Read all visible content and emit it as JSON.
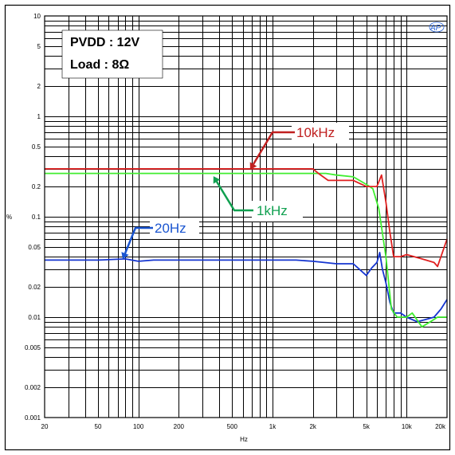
{
  "chart_data": {
    "type": "line",
    "xscale": "log",
    "yscale": "log",
    "xlim": [
      20,
      20000
    ],
    "ylim": [
      0.001,
      10
    ],
    "xlabel": "Hz",
    "ylabel": "%",
    "grid": true,
    "x_ticks": [
      {
        "value": 20,
        "label": "20"
      },
      {
        "value": 50,
        "label": "50"
      },
      {
        "value": 100,
        "label": "100"
      },
      {
        "value": 200,
        "label": "200"
      },
      {
        "value": 500,
        "label": "500"
      },
      {
        "value": 1000,
        "label": "1k"
      },
      {
        "value": 2000,
        "label": "2k"
      },
      {
        "value": 5000,
        "label": "5k"
      },
      {
        "value": 10000,
        "label": "10k"
      },
      {
        "value": 20000,
        "label": "20k"
      }
    ],
    "y_ticks": [
      {
        "value": 10,
        "label": "10"
      },
      {
        "value": 5,
        "label": "5"
      },
      {
        "value": 2,
        "label": "2"
      },
      {
        "value": 1,
        "label": "1"
      },
      {
        "value": 0.5,
        "label": "0.5"
      },
      {
        "value": 0.2,
        "label": "0.2"
      },
      {
        "value": 0.1,
        "label": "0.1"
      },
      {
        "value": 0.05,
        "label": "0.05"
      },
      {
        "value": 0.02,
        "label": "0.02"
      },
      {
        "value": 0.01,
        "label": "0.01"
      },
      {
        "value": 0.005,
        "label": "0.005"
      },
      {
        "value": 0.002,
        "label": "0.002"
      },
      {
        "value": 0.001,
        "label": "0.001"
      }
    ],
    "info_box": {
      "line1": "PVDD : 12V",
      "line2": "Load : 8Ω"
    },
    "logo_text": "AP",
    "series": [
      {
        "name": "10kHz",
        "color": "#e02020",
        "points": [
          [
            20,
            0.3
          ],
          [
            100,
            0.3
          ],
          [
            300,
            0.3
          ],
          [
            700,
            0.3
          ],
          [
            1500,
            0.3
          ],
          [
            2000,
            0.3
          ],
          [
            2200,
            0.27
          ],
          [
            2600,
            0.23
          ],
          [
            3500,
            0.23
          ],
          [
            4000,
            0.23
          ],
          [
            5000,
            0.2
          ],
          [
            5500,
            0.2
          ],
          [
            6000,
            0.2
          ],
          [
            6500,
            0.26
          ],
          [
            7000,
            0.14
          ],
          [
            7500,
            0.07
          ],
          [
            8000,
            0.04
          ],
          [
            9000,
            0.04
          ],
          [
            10000,
            0.042
          ],
          [
            13000,
            0.038
          ],
          [
            16000,
            0.035
          ],
          [
            17000,
            0.032
          ],
          [
            20000,
            0.06
          ]
        ]
      },
      {
        "name": "1kHz",
        "color": "#40ee30",
        "points": [
          [
            20,
            0.27
          ],
          [
            100,
            0.27
          ],
          [
            300,
            0.27
          ],
          [
            700,
            0.27
          ],
          [
            1500,
            0.27
          ],
          [
            2000,
            0.27
          ],
          [
            2500,
            0.27
          ],
          [
            3000,
            0.26
          ],
          [
            4000,
            0.25
          ],
          [
            5000,
            0.21
          ],
          [
            5600,
            0.19
          ],
          [
            6200,
            0.12
          ],
          [
            7000,
            0.04
          ],
          [
            7700,
            0.012
          ],
          [
            8500,
            0.01
          ],
          [
            10000,
            0.01
          ],
          [
            11000,
            0.011
          ],
          [
            13000,
            0.008
          ],
          [
            15000,
            0.009
          ],
          [
            17000,
            0.01
          ],
          [
            20000,
            0.01
          ]
        ]
      },
      {
        "name": "20Hz",
        "color": "#1535d0",
        "points": [
          [
            20,
            0.037
          ],
          [
            50,
            0.037
          ],
          [
            80,
            0.038
          ],
          [
            100,
            0.036
          ],
          [
            130,
            0.037
          ],
          [
            200,
            0.037
          ],
          [
            300,
            0.037
          ],
          [
            500,
            0.037
          ],
          [
            700,
            0.037
          ],
          [
            1000,
            0.037
          ],
          [
            1500,
            0.037
          ],
          [
            2000,
            0.036
          ],
          [
            3000,
            0.034
          ],
          [
            4000,
            0.034
          ],
          [
            5000,
            0.026
          ],
          [
            5500,
            0.031
          ],
          [
            6000,
            0.035
          ],
          [
            6300,
            0.044
          ],
          [
            6600,
            0.03
          ],
          [
            7000,
            0.022
          ],
          [
            7500,
            0.014
          ],
          [
            8000,
            0.011
          ],
          [
            9000,
            0.011
          ],
          [
            10000,
            0.01
          ],
          [
            12000,
            0.009
          ],
          [
            14000,
            0.0095
          ],
          [
            16000,
            0.01
          ],
          [
            18000,
            0.012
          ],
          [
            20000,
            0.015
          ]
        ]
      }
    ],
    "annotations": [
      {
        "text": "10kHz",
        "color": "#c02020",
        "series": "10kHz"
      },
      {
        "text": "1kHz",
        "color": "#10a050",
        "series": "1kHz"
      },
      {
        "text": "20Hz",
        "color": "#1a55d0",
        "series": "20Hz"
      }
    ]
  }
}
